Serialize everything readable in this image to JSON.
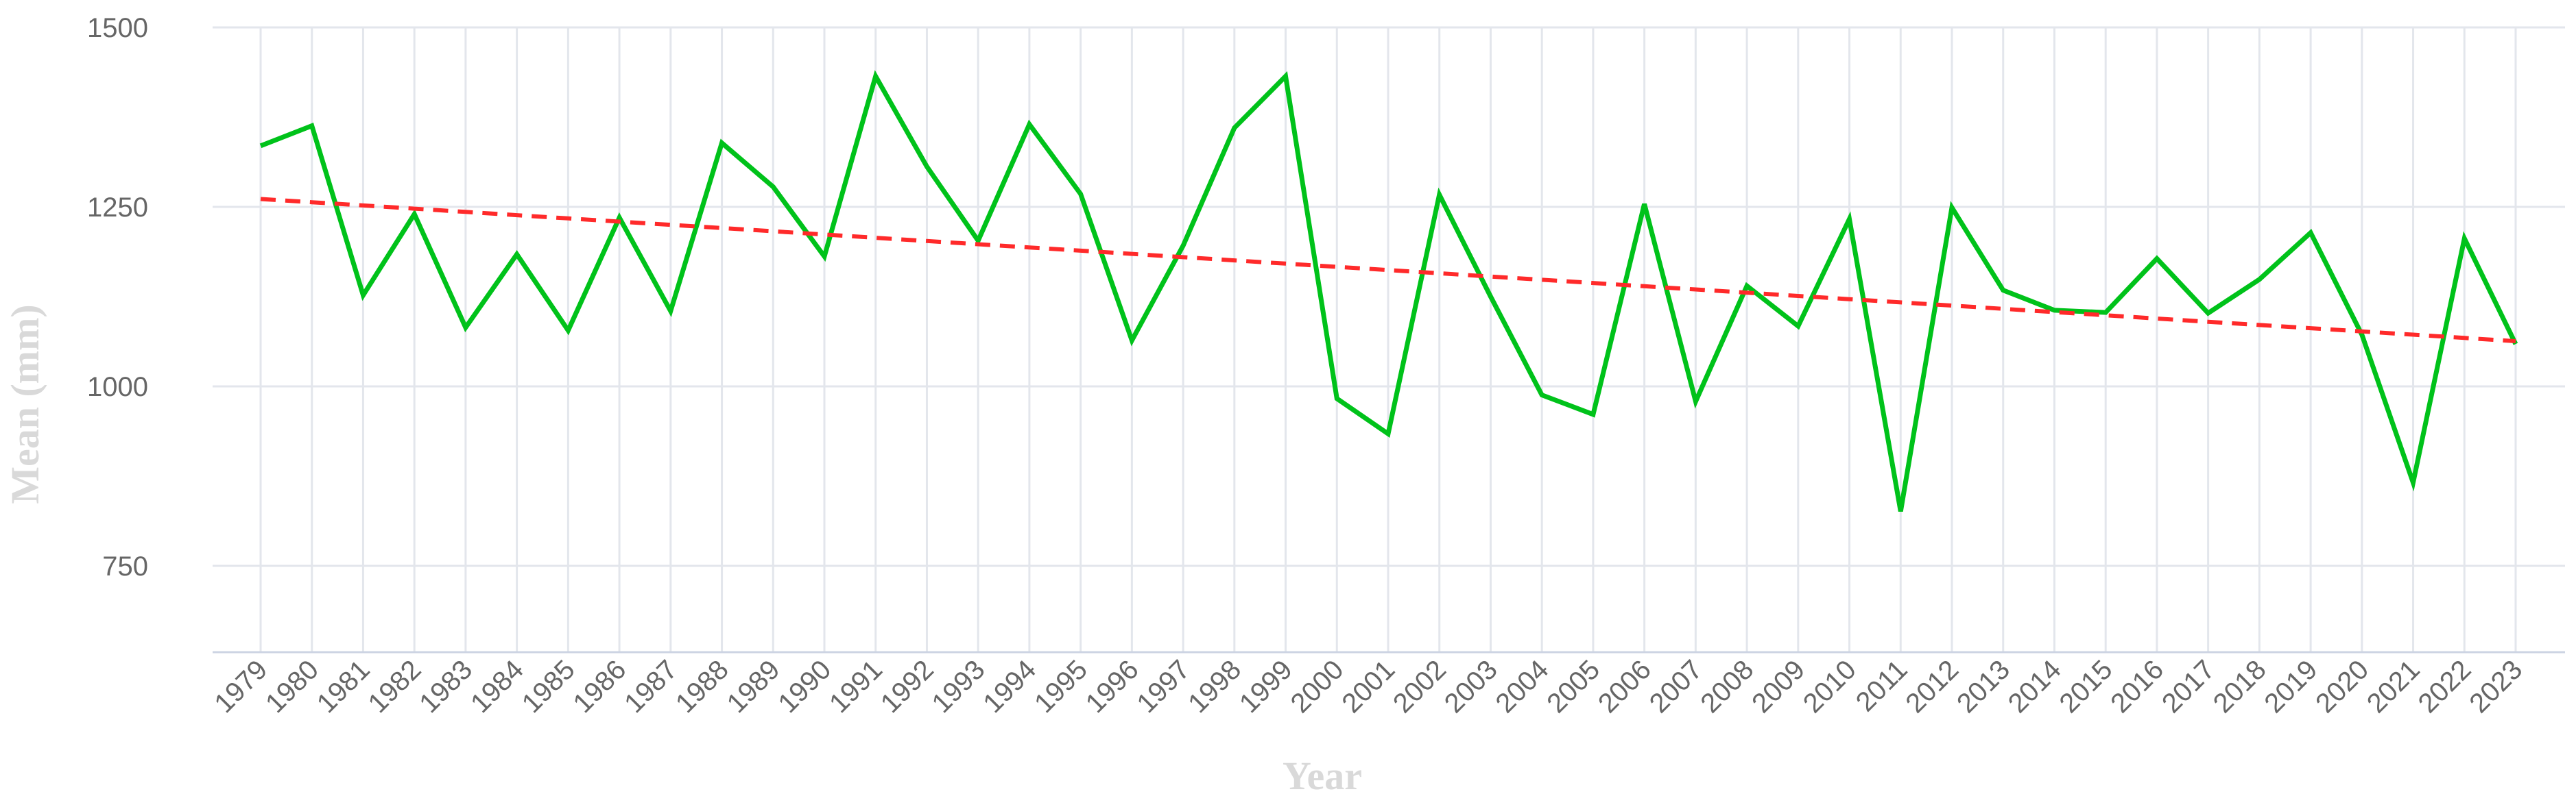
{
  "chart_data": {
    "type": "line",
    "title": "",
    "xlabel": "Year",
    "ylabel": "Mean (mm)",
    "ylim": [
      750,
      1500
    ],
    "yticks": [
      750,
      1000,
      1250,
      1500
    ],
    "grid": true,
    "x": [
      "1979",
      "1980",
      "1981",
      "1982",
      "1983",
      "1984",
      "1985",
      "1986",
      "1987",
      "1988",
      "1989",
      "1990",
      "1991",
      "1992",
      "1993",
      "1994",
      "1995",
      "1996",
      "1997",
      "1998",
      "1999",
      "2000",
      "2001",
      "2002",
      "2003",
      "2004",
      "2005",
      "2006",
      "2007",
      "2008",
      "2009",
      "2010",
      "2011",
      "2012",
      "2013",
      "2014",
      "2015",
      "2016",
      "2017",
      "2018",
      "2019",
      "2020",
      "2021",
      "2022",
      "2023"
    ],
    "series": [
      {
        "color": "#00c21a",
        "style": "solid",
        "values": [
          1335,
          1363,
          1127,
          1240,
          1082,
          1184,
          1078,
          1235,
          1105,
          1339,
          1278,
          1181,
          1432,
          1306,
          1203,
          1365,
          1268,
          1064,
          1196,
          1360,
          1432,
          983,
          934,
          1267,
          1125,
          988,
          961,
          1254,
          979,
          1140,
          1084,
          1233,
          826,
          1249,
          1134,
          1106,
          1103,
          1178,
          1102,
          1149,
          1214,
          1072,
          866,
          1206,
          1059
        ]
      },
      {
        "color": "#ff2a2a",
        "style": "dashed",
        "values": [
          1261,
          1256.5,
          1252,
          1247.5,
          1243,
          1238.5,
          1234,
          1229.5,
          1225,
          1220.5,
          1216,
          1211.5,
          1207,
          1202.5,
          1198,
          1193.5,
          1189,
          1184.5,
          1180,
          1175.5,
          1171,
          1166.5,
          1162,
          1157.5,
          1153,
          1148.5,
          1144,
          1139.5,
          1135,
          1130.5,
          1126,
          1121.5,
          1117,
          1112.5,
          1108,
          1103.5,
          1099,
          1094.5,
          1090,
          1085.5,
          1081,
          1076.5,
          1072,
          1067.5,
          1063
        ]
      }
    ]
  }
}
